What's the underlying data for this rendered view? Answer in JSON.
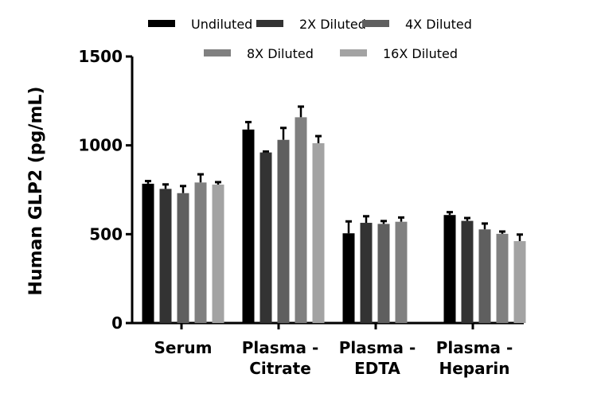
{
  "chart_data": {
    "type": "bar",
    "ylabel": "Human GLP2 (pg/mL)",
    "ylim": [
      0,
      1500
    ],
    "yticks": [
      "0",
      "500",
      "1000",
      "1500"
    ],
    "legend_position": "top",
    "grid": false,
    "categories": [
      [
        "Serum"
      ],
      [
        "Plasma -",
        "Citrate"
      ],
      [
        "Plasma -",
        "EDTA"
      ],
      [
        "Plasma -",
        "Heparin"
      ]
    ],
    "series": [
      {
        "name": "Undiluted",
        "color": "#000000",
        "values": [
          784,
          1089,
          505,
          608
        ],
        "errors": [
          15,
          42,
          67,
          16
        ]
      },
      {
        "name": "2X Diluted",
        "color": "#333333",
        "values": [
          755,
          960,
          564,
          575
        ],
        "errors": [
          25,
          5,
          37,
          16
        ]
      },
      {
        "name": "4X Diluted",
        "color": "#5f5f5f",
        "values": [
          731,
          1031,
          558,
          527
        ],
        "errors": [
          40,
          67,
          16,
          33
        ]
      },
      {
        "name": "8X Diluted",
        "color": "#808080",
        "values": [
          791,
          1158,
          570,
          502
        ],
        "errors": [
          46,
          60,
          24,
          13
        ]
      },
      {
        "name": "16X Diluted",
        "color": "#a3a3a3",
        "values": [
          779,
          1012,
          null,
          461
        ],
        "errors": [
          14,
          40,
          null,
          37
        ]
      }
    ]
  }
}
